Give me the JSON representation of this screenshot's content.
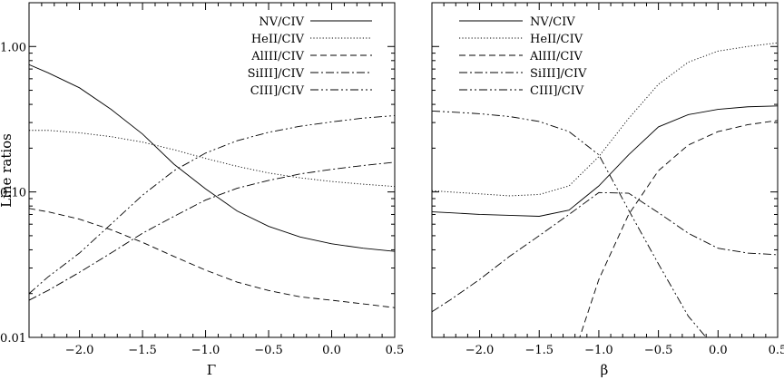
{
  "chart_data": [
    {
      "type": "line",
      "xlabel": "Γ",
      "ylabel": "Line ratios",
      "xlim": [
        -2.4,
        0.5
      ],
      "ylim": [
        0.01,
        2.0
      ],
      "yscale": "log",
      "xticks": [
        "−2.0",
        "−1.5",
        "−1.0",
        "−0.5",
        "0.0",
        "0.5"
      ],
      "xtick_values": [
        -2.0,
        -1.5,
        -1.0,
        -0.5,
        0.0,
        0.5
      ],
      "yticks": [
        "1.00",
        "0.10",
        "0.01"
      ],
      "ytick_values": [
        1.0,
        0.1,
        0.01
      ],
      "legend_position": "top-right",
      "x": [
        -2.4,
        -2.25,
        -2.0,
        -1.75,
        -1.5,
        -1.25,
        -1.0,
        -0.75,
        -0.5,
        -0.25,
        0.0,
        0.25,
        0.5
      ],
      "series": [
        {
          "name": "NV/CIV",
          "style": "solid",
          "values": [
            0.75,
            0.66,
            0.52,
            0.37,
            0.25,
            0.155,
            0.105,
            0.074,
            0.058,
            0.049,
            0.044,
            0.041,
            0.039
          ]
        },
        {
          "name": "HeII/CIV",
          "style": "dotted",
          "values": [
            0.265,
            0.265,
            0.255,
            0.24,
            0.22,
            0.195,
            0.17,
            0.15,
            0.135,
            0.125,
            0.118,
            0.113,
            0.109
          ]
        },
        {
          "name": "AlIII/CIV",
          "style": "dashed",
          "values": [
            0.077,
            0.073,
            0.065,
            0.055,
            0.045,
            0.036,
            0.029,
            0.024,
            0.021,
            0.019,
            0.018,
            0.017,
            0.016
          ]
        },
        {
          "name": "SiIII]/CIV",
          "style": "dashdot",
          "values": [
            0.018,
            0.021,
            0.028,
            0.038,
            0.052,
            0.068,
            0.088,
            0.106,
            0.12,
            0.133,
            0.143,
            0.152,
            0.16
          ]
        },
        {
          "name": "CIII]/CIV",
          "style": "dashdotdot",
          "values": [
            0.02,
            0.026,
            0.038,
            0.06,
            0.095,
            0.14,
            0.185,
            0.225,
            0.257,
            0.283,
            0.303,
            0.322,
            0.335
          ]
        }
      ]
    },
    {
      "type": "line",
      "xlabel": "β",
      "ylabel": "",
      "xlim": [
        -2.4,
        0.5
      ],
      "ylim": [
        0.01,
        2.0
      ],
      "yscale": "log",
      "xticks": [
        "−2.0",
        "−1.5",
        "−1.0",
        "−0.5",
        "0.0",
        "0.5"
      ],
      "xtick_values": [
        -2.0,
        -1.5,
        -1.0,
        -0.5,
        0.0,
        0.5
      ],
      "legend_position": "top-center",
      "x": [
        -2.4,
        -2.25,
        -2.0,
        -1.75,
        -1.5,
        -1.25,
        -1.0,
        -0.75,
        -0.5,
        -0.25,
        0.0,
        0.25,
        0.5
      ],
      "series": [
        {
          "name": "NV/CIV",
          "style": "solid",
          "values": [
            0.073,
            0.072,
            0.07,
            0.069,
            0.068,
            0.075,
            0.11,
            0.18,
            0.28,
            0.34,
            0.37,
            0.385,
            0.39
          ]
        },
        {
          "name": "HeII/CIV",
          "style": "dotted",
          "values": [
            0.102,
            0.1,
            0.097,
            0.094,
            0.096,
            0.11,
            0.175,
            0.32,
            0.55,
            0.78,
            0.93,
            1.0,
            1.06
          ]
        },
        {
          "name": "AlIII/CIV",
          "style": "dashed",
          "values": [
            null,
            null,
            null,
            null,
            null,
            0.006,
            0.025,
            0.07,
            0.14,
            0.21,
            0.26,
            0.29,
            0.31
          ]
        },
        {
          "name": "SiIII]/CIV",
          "style": "dashdot",
          "values": [
            0.015,
            0.018,
            0.025,
            0.036,
            0.05,
            0.07,
            0.099,
            0.098,
            0.072,
            0.052,
            0.041,
            0.038,
            0.037
          ]
        },
        {
          "name": "CIII]/CIV",
          "style": "dashdotdot",
          "values": [
            0.36,
            0.355,
            0.345,
            0.33,
            0.305,
            0.26,
            0.18,
            0.075,
            0.032,
            0.014,
            0.008,
            null,
            null
          ]
        }
      ]
    }
  ],
  "legends": [
    [
      "NV/CIV",
      "HeII/CIV",
      "AlIII/CIV",
      "SiIII]/CIV",
      "CIII]/CIV"
    ],
    [
      "NV/CIV",
      "HeII/CIV",
      "AlIII/CIV",
      "SiIII]/CIV",
      "CIII]/CIV"
    ]
  ]
}
